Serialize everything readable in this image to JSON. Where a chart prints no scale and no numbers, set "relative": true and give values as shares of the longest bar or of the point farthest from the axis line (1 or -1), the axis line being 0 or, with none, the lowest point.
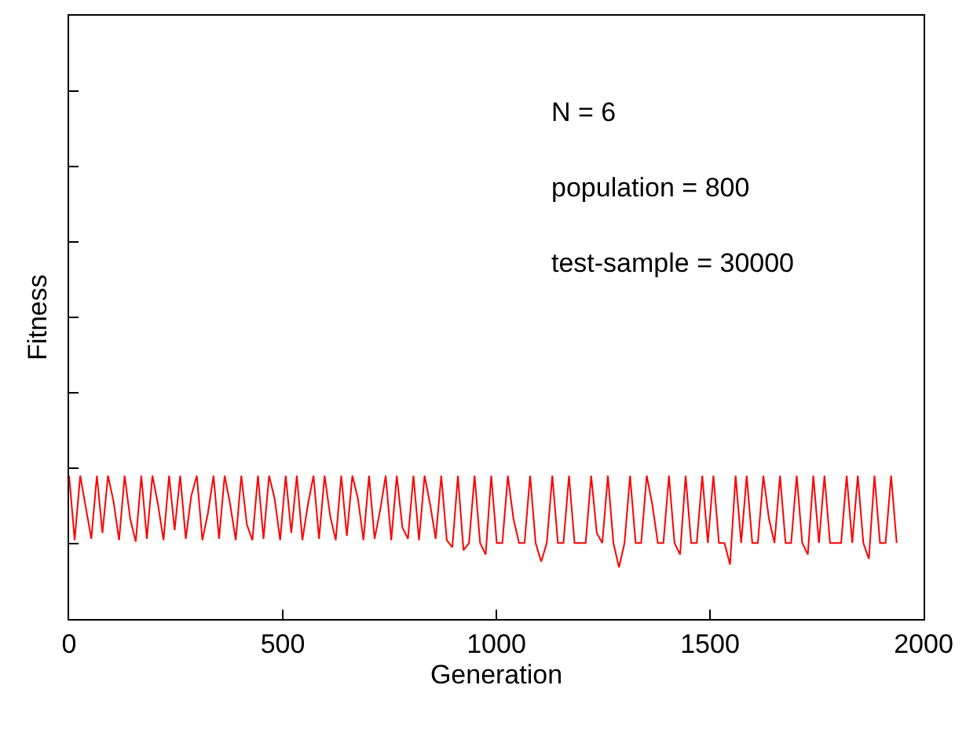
{
  "chart_data": {
    "type": "line",
    "relative": true,
    "xlabel": "Generation",
    "ylabel": "Fitness",
    "annotations": [
      "N = 6",
      "population = 800",
      "test-sample = 30000"
    ],
    "xlim": [
      0,
      2000
    ],
    "xticks": [
      0,
      500,
      1000,
      1500,
      2000
    ],
    "marker": "none",
    "line_style": "solid",
    "series": [
      {
        "color": "#ff0000",
        "x": [
          0,
          13,
          26,
          39,
          52,
          65,
          78,
          91,
          104,
          117,
          130,
          143,
          156,
          169,
          182,
          195,
          208,
          221,
          234,
          247,
          260,
          273,
          286,
          299,
          312,
          325,
          338,
          351,
          364,
          377,
          390,
          403,
          416,
          429,
          442,
          455,
          468,
          481,
          494,
          507,
          520,
          533,
          546,
          559,
          572,
          585,
          598,
          611,
          624,
          637,
          650,
          663,
          676,
          689,
          702,
          715,
          728,
          741,
          754,
          767,
          780,
          793,
          806,
          819,
          832,
          845,
          858,
          871,
          884,
          897,
          910,
          923,
          936,
          949,
          962,
          975,
          988,
          1001,
          1014,
          1027,
          1040,
          1053,
          1066,
          1079,
          1092,
          1105,
          1118,
          1131,
          1144,
          1157,
          1170,
          1183,
          1196,
          1209,
          1222,
          1235,
          1248,
          1261,
          1274,
          1287,
          1300,
          1313,
          1326,
          1339,
          1352,
          1365,
          1378,
          1391,
          1404,
          1417,
          1430,
          1443,
          1456,
          1469,
          1482,
          1495,
          1508,
          1521,
          1534,
          1547,
          1560,
          1573,
          1586,
          1599,
          1612,
          1625,
          1638,
          1651,
          1664,
          1677,
          1690,
          1703,
          1716,
          1729,
          1742,
          1755,
          1768,
          1781,
          1794,
          1807,
          1820,
          1833,
          1846,
          1859,
          1872,
          1885,
          1898,
          1911,
          1924,
          1937
        ],
        "values": [
          1,
          0.55,
          1,
          0.78,
          0.56,
          1,
          0.6,
          1,
          0.82,
          0.55,
          1,
          0.7,
          0.54,
          1,
          0.56,
          1,
          0.8,
          0.55,
          1,
          0.62,
          1,
          0.56,
          0.86,
          1,
          0.55,
          0.74,
          1,
          0.56,
          1,
          0.8,
          0.55,
          1,
          0.66,
          0.55,
          1,
          0.56,
          1,
          0.84,
          0.55,
          1,
          0.6,
          1,
          0.55,
          0.8,
          1,
          0.56,
          1,
          0.72,
          0.55,
          1,
          0.58,
          1,
          0.84,
          0.55,
          1,
          0.56,
          0.76,
          1,
          0.55,
          1,
          0.64,
          0.56,
          1,
          0.55,
          1,
          0.8,
          0.56,
          1,
          0.55,
          0.5,
          1,
          0.48,
          0.53,
          1,
          0.53,
          0.45,
          1,
          0.53,
          0.53,
          1,
          0.7,
          0.53,
          0.53,
          1,
          0.53,
          0.4,
          0.53,
          1,
          0.53,
          0.53,
          1,
          0.53,
          0.53,
          0.53,
          1,
          0.6,
          0.53,
          1,
          0.53,
          0.36,
          0.53,
          1,
          0.53,
          0.53,
          1,
          0.8,
          0.53,
          0.53,
          1,
          0.53,
          0.45,
          1,
          0.53,
          0.53,
          1,
          0.53,
          1,
          0.53,
          0.53,
          0.38,
          1,
          0.53,
          1,
          0.53,
          0.53,
          1,
          0.7,
          0.53,
          1,
          0.53,
          0.53,
          1,
          0.53,
          0.45,
          1,
          0.53,
          1,
          0.53,
          0.53,
          0.53,
          1,
          0.53,
          1,
          0.53,
          0.42,
          1,
          0.53,
          0.53,
          1,
          0.53
        ]
      }
    ]
  }
}
